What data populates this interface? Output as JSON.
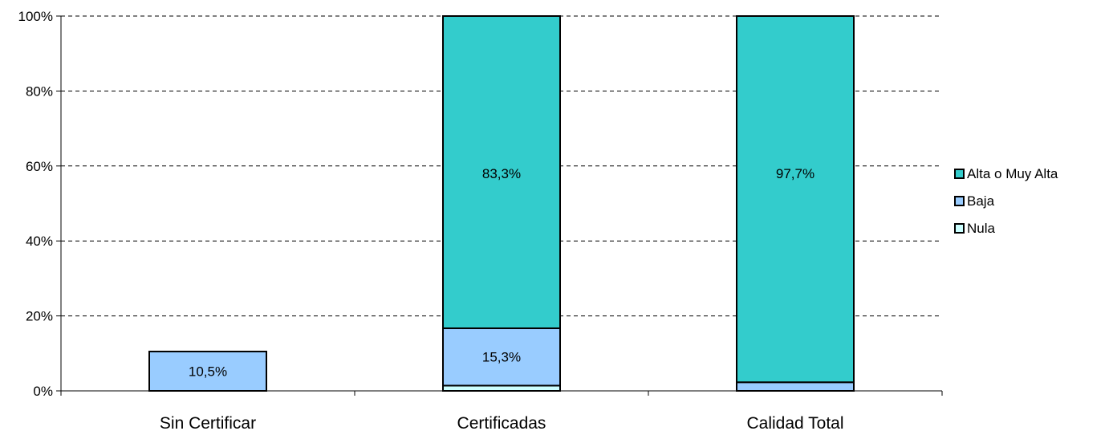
{
  "chart_data": {
    "type": "bar",
    "stacked": true,
    "categories": [
      "Sin Certificar",
      "Certificadas",
      "Calidad Total"
    ],
    "series": [
      {
        "name": "Nula",
        "values": [
          0,
          1.4,
          0
        ],
        "color": "#ccffff"
      },
      {
        "name": "Baja",
        "values": [
          10.5,
          15.3,
          2.3
        ],
        "color": "#99ccff"
      },
      {
        "name": "Alta o Muy Alta",
        "values": [
          0,
          83.3,
          97.7
        ],
        "color": "#33cccc"
      }
    ],
    "data_labels": [
      {
        "category": "Sin Certificar",
        "series": "Baja",
        "text": "10,5%"
      },
      {
        "category": "Certificadas",
        "series": "Baja",
        "text": "15,3%"
      },
      {
        "category": "Certificadas",
        "series": "Alta o Muy Alta",
        "text": "83,3%"
      },
      {
        "category": "Calidad Total",
        "series": "Alta o Muy Alta",
        "text": "97,7%"
      }
    ],
    "ylim": [
      0,
      100
    ],
    "yticks": [
      0,
      20,
      40,
      60,
      80,
      100
    ],
    "ytick_labels": [
      "0%",
      "20%",
      "40%",
      "60%",
      "80%",
      "100%"
    ],
    "title": "",
    "xlabel": "",
    "ylabel": "",
    "grid": "horizontal dashed",
    "legend": {
      "position": "right",
      "entries": [
        "Alta o Muy Alta",
        "Baja",
        "Nula"
      ]
    }
  }
}
